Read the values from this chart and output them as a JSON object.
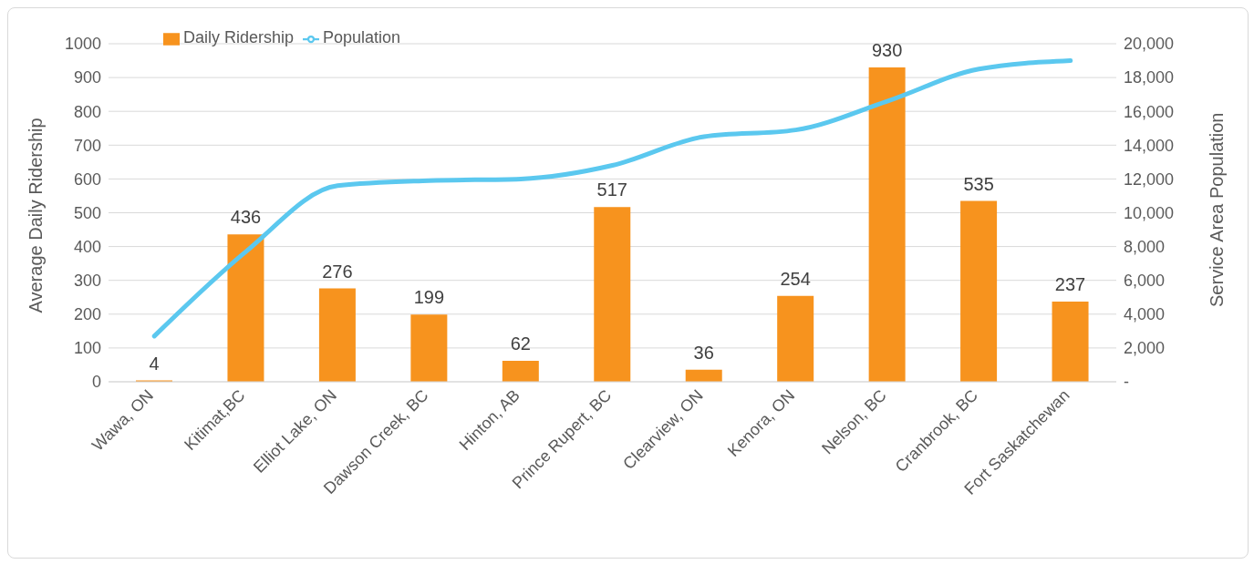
{
  "chart_data": {
    "type": "bar",
    "categories": [
      "Wawa, ON",
      "Kitimat,BC",
      "Elliot Lake, ON",
      "Dawson Creek, BC",
      "Hinton, AB",
      "Prince Rupert, BC",
      "Clearview, ON",
      "Kenora, ON",
      "Nelson, BC",
      "Cranbrook, BC",
      "Fort Saskatchewan"
    ],
    "series": [
      {
        "name": "Daily Ridership",
        "color": "#f7931e",
        "values": [
          4,
          436,
          276,
          199,
          62,
          517,
          36,
          254,
          930,
          535,
          237
        ],
        "value_labels": [
          "4",
          "436",
          "276",
          "199",
          "62",
          "517",
          "36",
          "254",
          "930",
          "535",
          "237"
        ]
      },
      {
        "name": "Population",
        "type": "line",
        "axis": "y2",
        "color": "#5bc8ef",
        "values": [
          2700,
          7700,
          11600,
          11900,
          12000,
          12800,
          14500,
          14900,
          16600,
          18500,
          19000
        ]
      }
    ],
    "ylabel": "Average Daily Ridership",
    "y2label": "Service Area Population",
    "ylim": [
      0,
      1000
    ],
    "yticks": [
      0,
      100,
      200,
      300,
      400,
      500,
      600,
      700,
      800,
      900,
      1000
    ],
    "y2lim": [
      0,
      20000
    ],
    "y2ticks": [
      {
        "value": 0,
        "label": "-"
      },
      {
        "value": 2000,
        "label": "2,000"
      },
      {
        "value": 4000,
        "label": "4,000"
      },
      {
        "value": 6000,
        "label": "6,000"
      },
      {
        "value": 8000,
        "label": "8,000"
      },
      {
        "value": 10000,
        "label": "10,000"
      },
      {
        "value": 12000,
        "label": "12,000"
      },
      {
        "value": 14000,
        "label": "14,000"
      },
      {
        "value": 16000,
        "label": "16,000"
      },
      {
        "value": 18000,
        "label": "18,000"
      },
      {
        "value": 20000,
        "label": "20,000"
      }
    ],
    "grid": "y",
    "legend": "top left",
    "marker": "none"
  }
}
